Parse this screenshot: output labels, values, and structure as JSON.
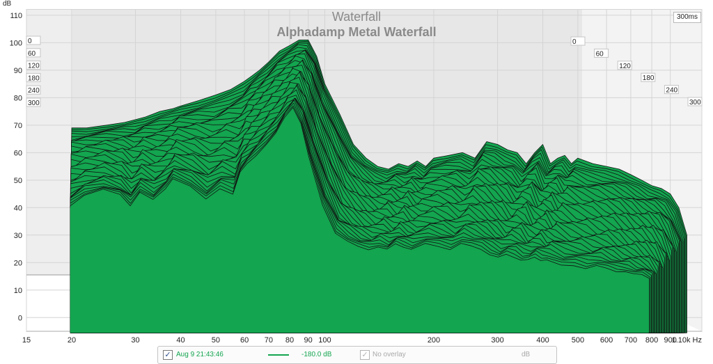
{
  "chart_data": {
    "type": "waterfall",
    "title": "Waterfall",
    "subtitle": "Alphadamp Metal Waterfall",
    "y_unit": "dB",
    "x_unit": "Hz",
    "time_label": "300ms",
    "xlim": [
      15,
      1100
    ],
    "x_scale": "log",
    "ylim": [
      -5,
      112
    ],
    "x_ticks": [
      {
        "value": 15,
        "label": "15"
      },
      {
        "value": 20,
        "label": "20"
      },
      {
        "value": 30,
        "label": "30"
      },
      {
        "value": 40,
        "label": "40"
      },
      {
        "value": 50,
        "label": "50"
      },
      {
        "value": 60,
        "label": "60"
      },
      {
        "value": 70,
        "label": "70"
      },
      {
        "value": 80,
        "label": "80"
      },
      {
        "value": 90,
        "label": "90"
      },
      {
        "value": 100,
        "label": "100"
      },
      {
        "value": 200,
        "label": "200"
      },
      {
        "value": 300,
        "label": "300"
      },
      {
        "value": 400,
        "label": "400"
      },
      {
        "value": 500,
        "label": "500"
      },
      {
        "value": 600,
        "label": "600"
      },
      {
        "value": 700,
        "label": "700"
      },
      {
        "value": 800,
        "label": "800"
      },
      {
        "value": 900,
        "label": "900"
      },
      {
        "value": 1100,
        "label": "1.10k Hz"
      }
    ],
    "y_ticks": [
      0,
      10,
      20,
      30,
      40,
      50,
      60,
      70,
      80,
      90,
      100,
      110
    ],
    "time_ticks_ms": [
      0,
      60,
      120,
      180,
      240,
      300
    ],
    "grid": true,
    "series": [
      {
        "time_ms": 0,
        "x": [
          20,
          22,
          25,
          28,
          30,
          32,
          35,
          38,
          40,
          45,
          50,
          55,
          60,
          63,
          66,
          70,
          75,
          80,
          85,
          90,
          95,
          100,
          110,
          120,
          130,
          140,
          150,
          160,
          170,
          180,
          190,
          200,
          220,
          240,
          260,
          280,
          300,
          320,
          340,
          360,
          380,
          400,
          420,
          440,
          460,
          480,
          500,
          550,
          600,
          650,
          700,
          750,
          800,
          850,
          900,
          950,
          1000
        ],
        "y": [
          69,
          69,
          70,
          71,
          72,
          73,
          75,
          76,
          77,
          79,
          81,
          83,
          86,
          88,
          90,
          93,
          97,
          99,
          101,
          101,
          95,
          85,
          74,
          63,
          58,
          55,
          54,
          56,
          55,
          57,
          55,
          58,
          59,
          60,
          58,
          64,
          63,
          61,
          60,
          56,
          60,
          63,
          56,
          58,
          59,
          56,
          58,
          56,
          55,
          54,
          52,
          50,
          48,
          47,
          45,
          40,
          30
        ]
      },
      {
        "time_ms": 300,
        "x": [
          20,
          22,
          25,
          28,
          30,
          32,
          35,
          38,
          40,
          45,
          50,
          55,
          60,
          63,
          66,
          70,
          75,
          80,
          85,
          90,
          95,
          100,
          110,
          120,
          130,
          140,
          150,
          160,
          170,
          180,
          190,
          200,
          220,
          240,
          260,
          280,
          300,
          320,
          340,
          360,
          380,
          400,
          420,
          440,
          460,
          480,
          500,
          550,
          600,
          650,
          700,
          750,
          800,
          850,
          900,
          950,
          1000
        ],
        "y": [
          40,
          44,
          46,
          44,
          40,
          45,
          42,
          46,
          50,
          47,
          42,
          46,
          44,
          52,
          55,
          58,
          62,
          66,
          72,
          76,
          70,
          58,
          40,
          30,
          27,
          25,
          24,
          25,
          24,
          26,
          25,
          24,
          26,
          25,
          24,
          26,
          25,
          24,
          22,
          21,
          22,
          21,
          20,
          20,
          21,
          20,
          20,
          18,
          18,
          17,
          18,
          17,
          16,
          16,
          15,
          15,
          14
        ]
      }
    ]
  },
  "legend": {
    "measurement_label": "Aug 9 21:43:46",
    "measurement_checked": "✓",
    "level_label": "-180.0 dB",
    "overlay_label": "No overlay",
    "overlay_checked": "✓",
    "unit_label": "dB"
  },
  "colors": {
    "fill": "#13a54f",
    "outline": "#111111",
    "grid": "#d4d4d4",
    "panel": "#eeeeee",
    "tick_text": "#222222"
  }
}
